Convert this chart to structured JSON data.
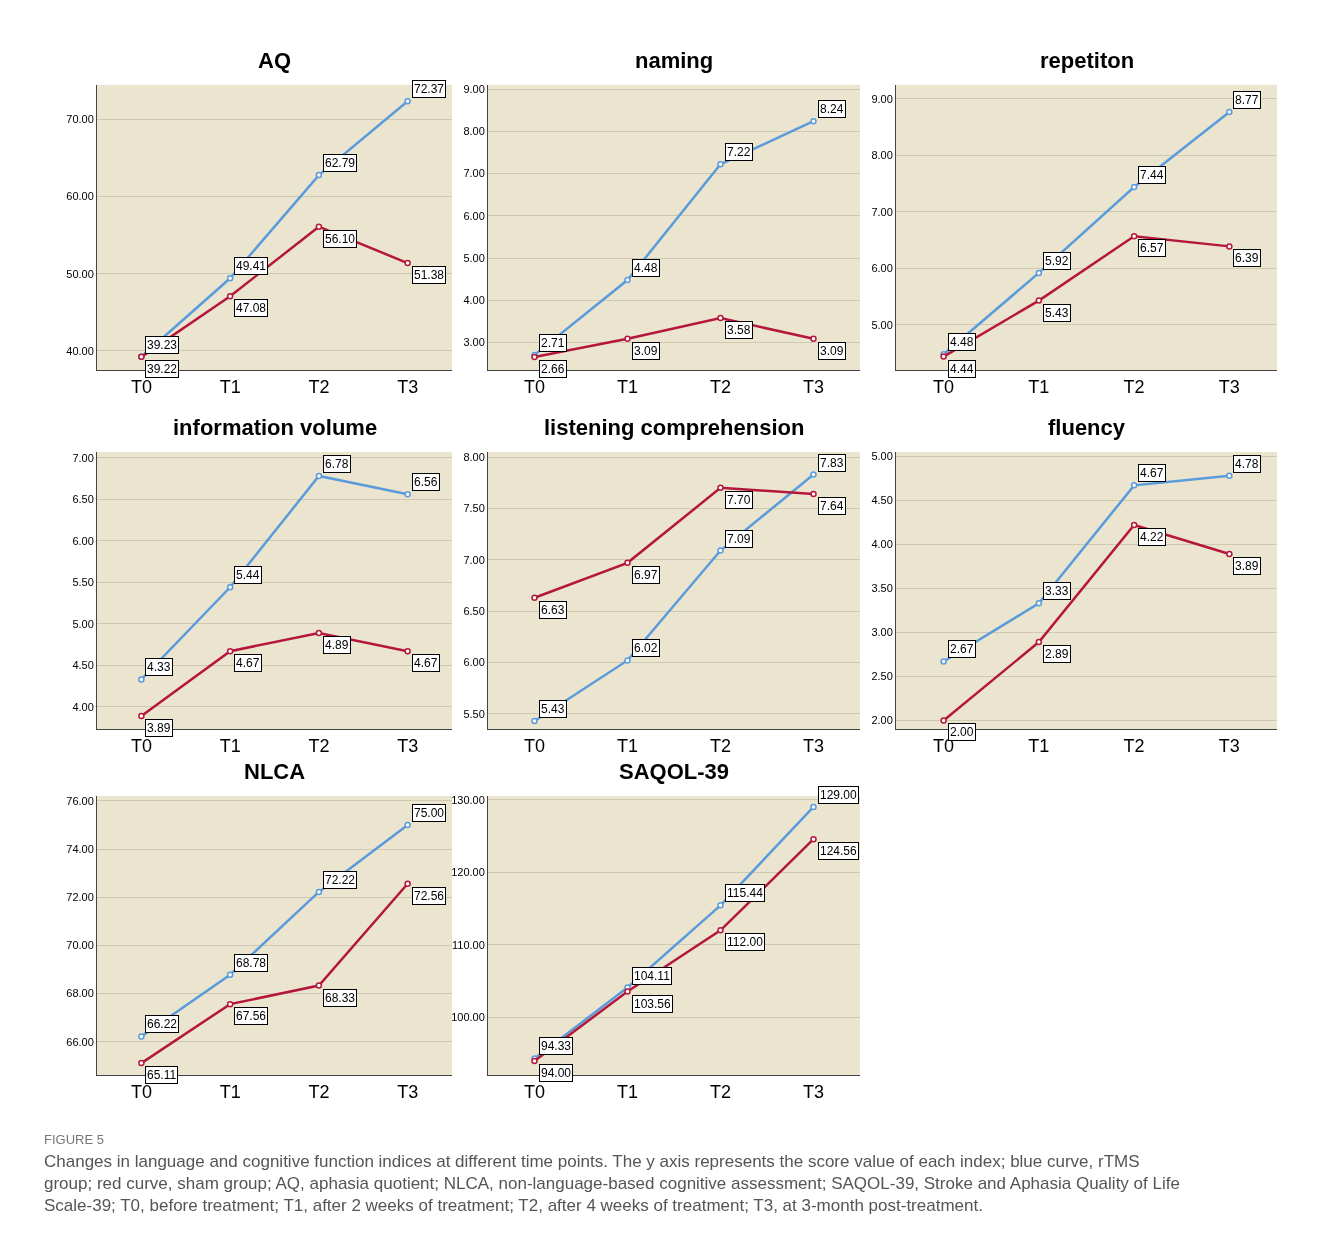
{
  "chart_data": [
    {
      "type": "line",
      "title": "AQ",
      "categories": [
        "T0",
        "T1",
        "T2",
        "T3"
      ],
      "marker": "circle",
      "grid": "y",
      "series": [
        {
          "color": "#5a9bdc",
          "values": [
            39.23,
            49.41,
            62.79,
            72.37
          ],
          "value_labels": [
            "39.23",
            "49.41",
            "62.79",
            "72.37"
          ]
        },
        {
          "color": "#b5173c",
          "values": [
            39.22,
            47.08,
            56.1,
            51.38
          ],
          "value_labels": [
            "39.22",
            "47.08",
            "56.10",
            "51.38"
          ]
        }
      ],
      "ylim": [
        37.5,
        74.5
      ],
      "yticks": [
        {
          "value": 40,
          "label": "40.00"
        },
        {
          "value": 50,
          "label": "50.00"
        },
        {
          "value": 60,
          "label": "60.00"
        },
        {
          "value": 70,
          "label": "70.00"
        }
      ]
    },
    {
      "type": "line",
      "title": "naming",
      "categories": [
        "T0",
        "T1",
        "T2",
        "T3"
      ],
      "marker": "circle",
      "grid": "y",
      "series": [
        {
          "color": "#5a9bdc",
          "values": [
            2.71,
            4.48,
            7.22,
            8.24
          ],
          "value_labels": [
            "2.71",
            "4.48",
            "7.22",
            "8.24"
          ]
        },
        {
          "color": "#b5173c",
          "values": [
            2.66,
            3.09,
            3.58,
            3.09
          ],
          "value_labels": [
            "2.66",
            "3.09",
            "3.58",
            "3.09"
          ]
        }
      ],
      "ylim": [
        2.35,
        9.1
      ],
      "yticks": [
        {
          "value": 3,
          "label": "3.00"
        },
        {
          "value": 4,
          "label": "4.00"
        },
        {
          "value": 5,
          "label": "5.00"
        },
        {
          "value": 6,
          "label": "6.00"
        },
        {
          "value": 7,
          "label": "7.00"
        },
        {
          "value": 8,
          "label": "8.00"
        },
        {
          "value": 9,
          "label": "9.00"
        }
      ]
    },
    {
      "type": "line",
      "title": "repetiton",
      "categories": [
        "T0",
        "T1",
        "T2",
        "T3"
      ],
      "marker": "circle",
      "grid": "y",
      "series": [
        {
          "color": "#5a9bdc",
          "values": [
            4.48,
            5.92,
            7.44,
            8.77
          ],
          "value_labels": [
            "4.48",
            "5.92",
            "7.44",
            "8.77"
          ]
        },
        {
          "color": "#b5173c",
          "values": [
            4.44,
            5.43,
            6.57,
            6.39
          ],
          "value_labels": [
            "4.44",
            "5.43",
            "6.57",
            "6.39"
          ]
        }
      ],
      "ylim": [
        4.2,
        9.25
      ],
      "yticks": [
        {
          "value": 5,
          "label": "5.00"
        },
        {
          "value": 6,
          "label": "6.00"
        },
        {
          "value": 7,
          "label": "7.00"
        },
        {
          "value": 8,
          "label": "8.00"
        },
        {
          "value": 9,
          "label": "9.00"
        }
      ]
    },
    {
      "type": "line",
      "title": "information volume",
      "categories": [
        "T0",
        "T1",
        "T2",
        "T3"
      ],
      "marker": "circle",
      "grid": "y",
      "series": [
        {
          "color": "#5a9bdc",
          "values": [
            4.33,
            5.44,
            6.78,
            6.56
          ],
          "value_labels": [
            "4.33",
            "5.44",
            "6.78",
            "6.56"
          ]
        },
        {
          "color": "#b5173c",
          "values": [
            3.89,
            4.67,
            4.89,
            4.67
          ],
          "value_labels": [
            "3.89",
            "4.67",
            "4.89",
            "4.67"
          ]
        }
      ],
      "ylim": [
        3.73,
        7.07
      ],
      "yticks": [
        {
          "value": 4,
          "label": "4.00"
        },
        {
          "value": 4.5,
          "label": "4.50"
        },
        {
          "value": 5,
          "label": "5.00"
        },
        {
          "value": 5.5,
          "label": "5.50"
        },
        {
          "value": 6,
          "label": "6.00"
        },
        {
          "value": 6.5,
          "label": "6.50"
        },
        {
          "value": 7,
          "label": "7.00"
        }
      ]
    },
    {
      "type": "line",
      "title": "listening comprehension",
      "categories": [
        "T0",
        "T1",
        "T2",
        "T3"
      ],
      "marker": "circle",
      "grid": "y",
      "series": [
        {
          "color": "#5a9bdc",
          "values": [
            5.43,
            6.02,
            7.09,
            7.83
          ],
          "value_labels": [
            "5.43",
            "6.02",
            "7.09",
            "7.83"
          ]
        },
        {
          "color": "#b5173c",
          "values": [
            6.63,
            6.97,
            7.7,
            7.64
          ],
          "value_labels": [
            "6.63",
            "6.97",
            "7.70",
            "7.64"
          ]
        }
      ],
      "ylim": [
        5.35,
        8.05
      ],
      "yticks": [
        {
          "value": 5.5,
          "label": "5.50"
        },
        {
          "value": 6,
          "label": "6.00"
        },
        {
          "value": 6.5,
          "label": "6.50"
        },
        {
          "value": 7,
          "label": "7.00"
        },
        {
          "value": 7.5,
          "label": "7.50"
        },
        {
          "value": 8,
          "label": "8.00"
        }
      ]
    },
    {
      "type": "line",
      "title": "fluency",
      "categories": [
        "T0",
        "T1",
        "T2",
        "T3"
      ],
      "marker": "circle",
      "grid": "y",
      "series": [
        {
          "color": "#5a9bdc",
          "values": [
            2.67,
            3.33,
            4.67,
            4.78
          ],
          "value_labels": [
            "2.67",
            "3.33",
            "4.67",
            "4.78"
          ]
        },
        {
          "color": "#b5173c",
          "values": [
            2.0,
            2.89,
            4.22,
            3.89
          ],
          "value_labels": [
            "2.00",
            "2.89",
            "4.22",
            "3.89"
          ]
        }
      ],
      "ylim": [
        1.9,
        5.05
      ],
      "yticks": [
        {
          "value": 2,
          "label": "2.00"
        },
        {
          "value": 2.5,
          "label": "2.50"
        },
        {
          "value": 3,
          "label": "3.00"
        },
        {
          "value": 3.5,
          "label": "3.50"
        },
        {
          "value": 4,
          "label": "4.00"
        },
        {
          "value": 4.5,
          "label": "4.50"
        },
        {
          "value": 5,
          "label": "5.00"
        }
      ]
    },
    {
      "type": "line",
      "title": "NLCA",
      "categories": [
        "T0",
        "T1",
        "T2",
        "T3"
      ],
      "marker": "circle",
      "grid": "y",
      "series": [
        {
          "color": "#5a9bdc",
          "values": [
            66.22,
            68.78,
            72.22,
            75.0
          ],
          "value_labels": [
            "66.22",
            "68.78",
            "72.22",
            "75.00"
          ]
        },
        {
          "color": "#b5173c",
          "values": [
            65.11,
            67.56,
            68.33,
            72.56
          ],
          "value_labels": [
            "65.11",
            "67.56",
            "68.33",
            "72.56"
          ]
        }
      ],
      "ylim": [
        64.6,
        76.2
      ],
      "yticks": [
        {
          "value": 66,
          "label": "66.00"
        },
        {
          "value": 68,
          "label": "68.00"
        },
        {
          "value": 70,
          "label": "70.00"
        },
        {
          "value": 72,
          "label": "72.00"
        },
        {
          "value": 74,
          "label": "74.00"
        },
        {
          "value": 76,
          "label": "76.00"
        }
      ]
    },
    {
      "type": "line",
      "title": "SAQOL-39",
      "categories": [
        "T0",
        "T1",
        "T2",
        "T3"
      ],
      "marker": "circle",
      "grid": "y",
      "series": [
        {
          "color": "#5a9bdc",
          "values": [
            94.33,
            104.11,
            115.44,
            129.0
          ],
          "value_labels": [
            "94.33",
            "104.11",
            "115.44",
            "129.00"
          ]
        },
        {
          "color": "#b5173c",
          "values": [
            94.0,
            103.56,
            112.0,
            124.56
          ],
          "value_labels": [
            "94.00",
            "103.56",
            "112.00",
            "124.56"
          ]
        }
      ],
      "ylim": [
        92,
        130.5
      ],
      "yticks": [
        {
          "value": 100,
          "label": "100.00"
        },
        {
          "value": 110,
          "label": "110.00"
        },
        {
          "value": 120,
          "label": "120.00"
        },
        {
          "value": 130,
          "label": "130.00"
        }
      ],
      "annotations": [
        "FIGURE 5",
        "Changes in language and cognitive function indices at different time points. The y axis represents the score value of each index; blue curve, rTMS group; red curve, sham group; AQ, aphasia quotient; NLCA, non-language-based cognitive assessment; SAQOL-39, Stroke and Aphasia Quality of Life Scale-39; T0, before treatment; T1, after 2 weeks of treatment; T2, after 4 weeks of treatment; T3, at 3-month post-treatment."
      ]
    }
  ]
}
